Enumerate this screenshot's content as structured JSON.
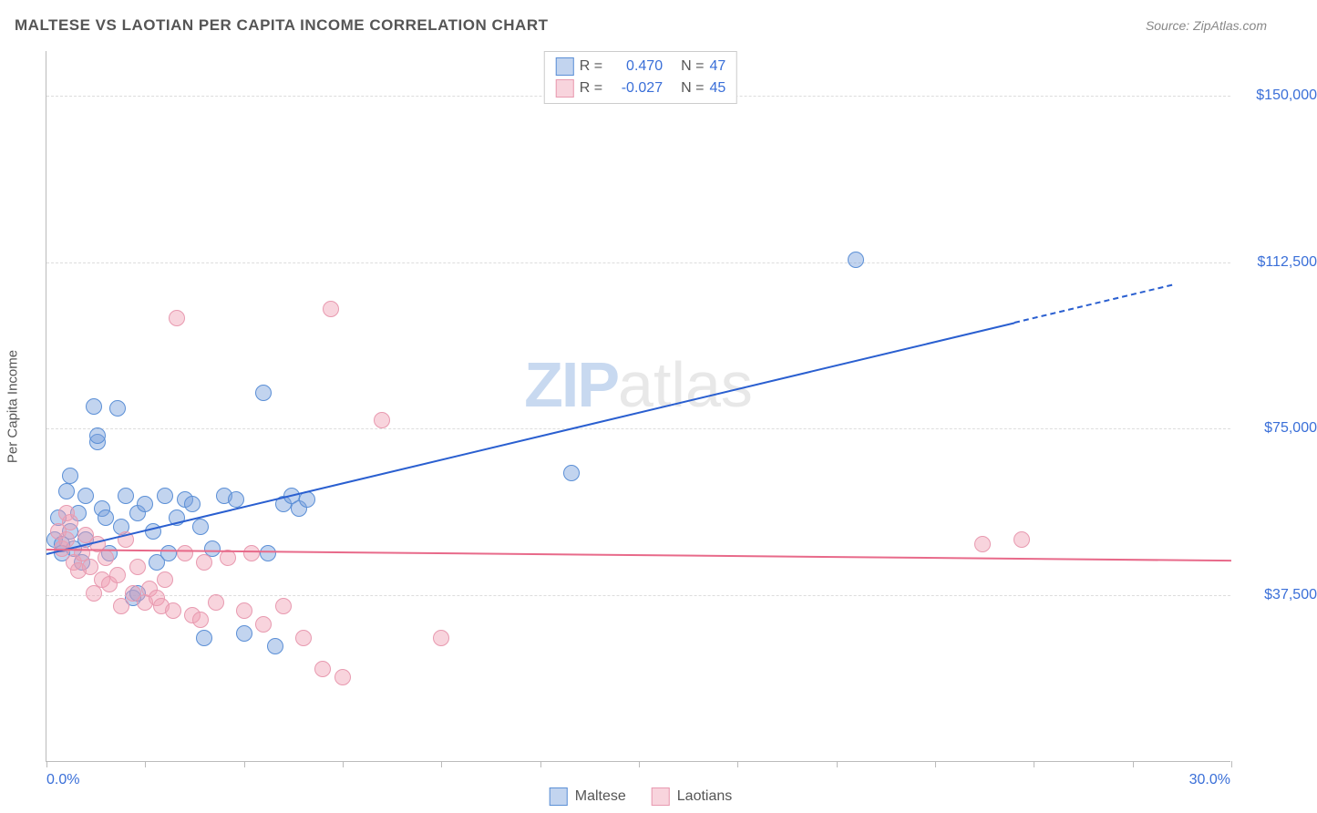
{
  "title": "MALTESE VS LAOTIAN PER CAPITA INCOME CORRELATION CHART",
  "source": "Source: ZipAtlas.com",
  "watermark_zip": "ZIP",
  "watermark_atlas": "atlas",
  "y_axis_title": "Per Capita Income",
  "colors": {
    "maltese_fill": "rgba(120,160,220,0.45)",
    "maltese_stroke": "#5b8fd6",
    "laotian_fill": "rgba(240,160,180,0.45)",
    "laotian_stroke": "#e89ab0",
    "maltese_line": "#2a5fd0",
    "laotian_line": "#e86a8a",
    "tick_text": "#3a6fd8",
    "axis_text": "#555555"
  },
  "chart": {
    "type": "scatter",
    "xlim": [
      0,
      30
    ],
    "ylim": [
      0,
      160000
    ],
    "x_ticks": [
      0,
      2.5,
      5,
      7.5,
      10,
      12.5,
      15,
      17.5,
      20,
      22.5,
      25,
      27.5,
      30
    ],
    "y_ticks": [
      {
        "v": 37500,
        "label": "$37,500"
      },
      {
        "v": 75000,
        "label": "$75,000"
      },
      {
        "v": 112500,
        "label": "$112,500"
      },
      {
        "v": 150000,
        "label": "$150,000"
      }
    ],
    "x_min_label": "0.0%",
    "x_max_label": "30.0%",
    "point_radius": 9,
    "point_stroke_width": 1
  },
  "series": [
    {
      "name": "Maltese",
      "color_fill_key": "maltese_fill",
      "color_stroke_key": "maltese_stroke",
      "r_value": "0.470",
      "n_value": "47",
      "trend": {
        "x0": 0,
        "y0": 47000,
        "x1": 24.5,
        "y1": 99000,
        "x1_ext": 28.5,
        "y1_ext": 107500,
        "color_key": "maltese_line",
        "width": 2.5
      },
      "points": [
        [
          0.2,
          50000
        ],
        [
          0.3,
          55000
        ],
        [
          0.4,
          47000
        ],
        [
          0.5,
          61000
        ],
        [
          0.6,
          52000
        ],
        [
          0.6,
          64500
        ],
        [
          0.7,
          48000
        ],
        [
          0.8,
          56000
        ],
        [
          0.9,
          45000
        ],
        [
          1.0,
          60000
        ],
        [
          1.0,
          50000
        ],
        [
          1.2,
          80000
        ],
        [
          1.3,
          72000
        ],
        [
          1.3,
          73500
        ],
        [
          1.4,
          57000
        ],
        [
          1.5,
          55000
        ],
        [
          1.6,
          47000
        ],
        [
          1.8,
          79500
        ],
        [
          1.9,
          53000
        ],
        [
          2.0,
          60000
        ],
        [
          2.2,
          37000
        ],
        [
          2.3,
          56000
        ],
        [
          2.3,
          38000
        ],
        [
          2.5,
          58000
        ],
        [
          2.7,
          52000
        ],
        [
          2.8,
          45000
        ],
        [
          3.0,
          60000
        ],
        [
          3.1,
          47000
        ],
        [
          3.3,
          55000
        ],
        [
          3.5,
          59000
        ],
        [
          3.7,
          58000
        ],
        [
          3.9,
          53000
        ],
        [
          4.0,
          28000
        ],
        [
          4.2,
          48000
        ],
        [
          4.5,
          60000
        ],
        [
          4.8,
          59000
        ],
        [
          5.0,
          29000
        ],
        [
          5.5,
          83000
        ],
        [
          5.6,
          47000
        ],
        [
          5.8,
          26000
        ],
        [
          6.0,
          58000
        ],
        [
          6.2,
          60000
        ],
        [
          6.4,
          57000
        ],
        [
          6.6,
          59000
        ],
        [
          13.3,
          65000
        ],
        [
          20.5,
          113000
        ],
        [
          0.4,
          49000
        ]
      ]
    },
    {
      "name": "Laotians",
      "color_fill_key": "laotian_fill",
      "color_stroke_key": "laotian_stroke",
      "r_value": "-0.027",
      "n_value": "45",
      "trend": {
        "x0": 0,
        "y0": 48000,
        "x1": 30,
        "y1": 45500,
        "color_key": "laotian_line",
        "width": 2.5
      },
      "points": [
        [
          0.3,
          52000
        ],
        [
          0.4,
          48000
        ],
        [
          0.5,
          50000
        ],
        [
          0.6,
          54000
        ],
        [
          0.7,
          45000
        ],
        [
          0.8,
          43000
        ],
        [
          0.9,
          47000
        ],
        [
          1.0,
          51000
        ],
        [
          1.1,
          44000
        ],
        [
          1.2,
          38000
        ],
        [
          1.3,
          49000
        ],
        [
          1.4,
          41000
        ],
        [
          1.5,
          46000
        ],
        [
          1.6,
          40000
        ],
        [
          1.8,
          42000
        ],
        [
          1.9,
          35000
        ],
        [
          2.0,
          50000
        ],
        [
          2.2,
          38000
        ],
        [
          2.3,
          44000
        ],
        [
          2.5,
          36000
        ],
        [
          2.6,
          39000
        ],
        [
          2.8,
          37000
        ],
        [
          2.9,
          35000
        ],
        [
          3.0,
          41000
        ],
        [
          3.2,
          34000
        ],
        [
          3.3,
          100000
        ],
        [
          3.5,
          47000
        ],
        [
          3.7,
          33000
        ],
        [
          3.9,
          32000
        ],
        [
          4.0,
          45000
        ],
        [
          4.3,
          36000
        ],
        [
          4.6,
          46000
        ],
        [
          5.0,
          34000
        ],
        [
          5.2,
          47000
        ],
        [
          5.5,
          31000
        ],
        [
          6.0,
          35000
        ],
        [
          6.5,
          28000
        ],
        [
          7.0,
          21000
        ],
        [
          7.2,
          102000
        ],
        [
          7.5,
          19000
        ],
        [
          8.5,
          77000
        ],
        [
          10.0,
          28000
        ],
        [
          23.7,
          49000
        ],
        [
          24.7,
          50000
        ],
        [
          0.5,
          56000
        ]
      ]
    }
  ],
  "legend_top": {
    "r_label": "R =",
    "n_label": "N ="
  },
  "legend_bottom": [
    {
      "label": "Maltese",
      "fill_key": "maltese_fill",
      "stroke_key": "maltese_stroke"
    },
    {
      "label": "Laotians",
      "fill_key": "laotian_fill",
      "stroke_key": "laotian_stroke"
    }
  ]
}
